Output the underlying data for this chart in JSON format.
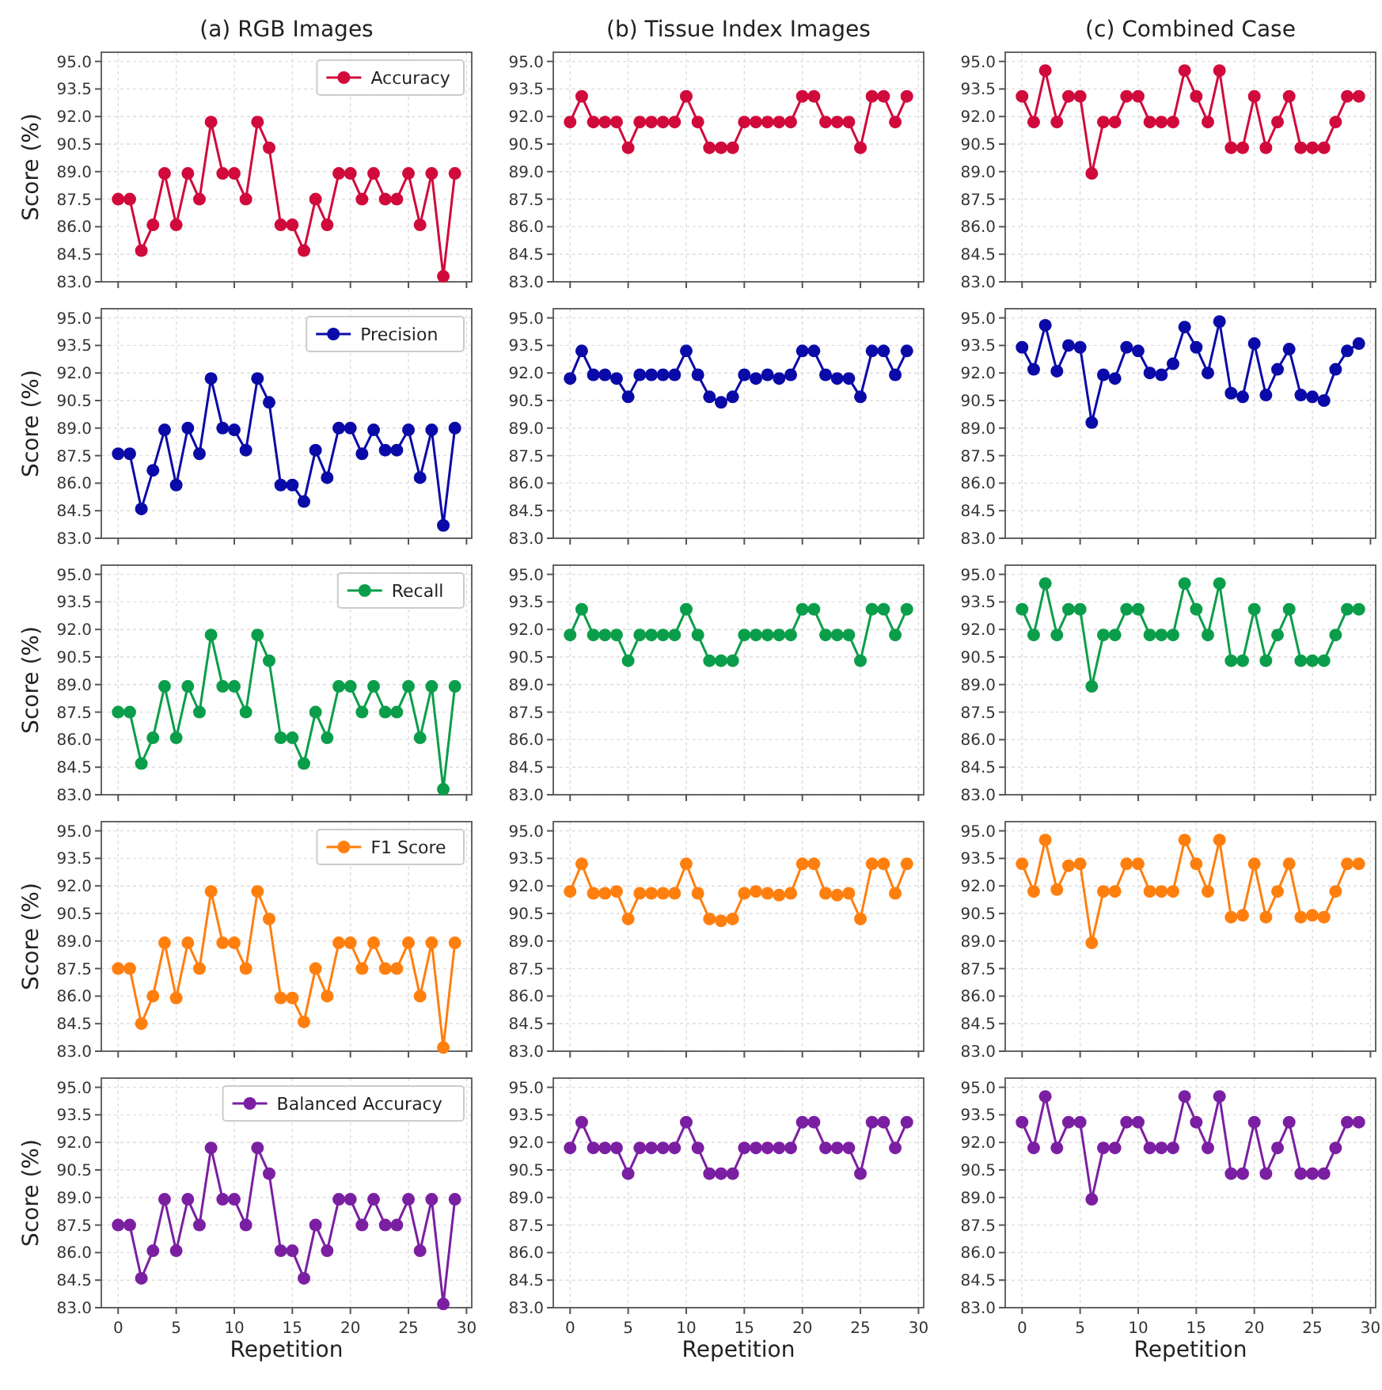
{
  "chart_data": [
    {
      "type": "line",
      "title": "(a) RGB Images",
      "ylabel": "Score (%)",
      "x": [
        0,
        1,
        2,
        3,
        4,
        5,
        6,
        7,
        8,
        9,
        10,
        11,
        12,
        13,
        14,
        15,
        16,
        17,
        18,
        19,
        20,
        21,
        22,
        23,
        24,
        25,
        26,
        27,
        28,
        29
      ],
      "xlim": [
        -1.45,
        30.45
      ],
      "xticks": [
        0,
        5,
        10,
        15,
        20,
        25,
        30
      ],
      "ylim": [
        83,
        95.5
      ],
      "yticks": [
        {
          "value": 83,
          "label": "83.0"
        },
        {
          "value": 84.5,
          "label": "84.5"
        },
        {
          "value": 86,
          "label": "86.0"
        },
        {
          "value": 87.5,
          "label": "87.5"
        },
        {
          "value": 89,
          "label": "89.0"
        },
        {
          "value": 90.5,
          "label": "90.5"
        },
        {
          "value": 92,
          "label": "92.0"
        },
        {
          "value": 93.5,
          "label": "93.5"
        },
        {
          "value": 95,
          "label": "95.0"
        }
      ],
      "grid": true,
      "legend": "top right",
      "marker": "circle",
      "tick_labels": "y",
      "series": [
        {
          "name": "Accuracy",
          "color": "#d10a3c",
          "values": [
            87.5,
            87.5,
            84.7,
            86.1,
            88.9,
            86.1,
            88.9,
            87.5,
            91.7,
            88.9,
            88.9,
            87.5,
            91.7,
            90.3,
            86.1,
            86.1,
            84.7,
            87.5,
            86.1,
            88.9,
            88.9,
            87.5,
            88.9,
            87.5,
            87.5,
            88.9,
            86.1,
            88.9,
            83.3,
            88.9
          ]
        }
      ]
    },
    {
      "type": "line",
      "title": "(b) Tissue Index Images",
      "x": [
        0,
        1,
        2,
        3,
        4,
        5,
        6,
        7,
        8,
        9,
        10,
        11,
        12,
        13,
        14,
        15,
        16,
        17,
        18,
        19,
        20,
        21,
        22,
        23,
        24,
        25,
        26,
        27,
        28,
        29
      ],
      "xlim": [
        -1.45,
        30.45
      ],
      "xticks": [
        0,
        5,
        10,
        15,
        20,
        25,
        30
      ],
      "ylim": [
        83,
        95.5
      ],
      "yticks": [
        {
          "value": 83,
          "label": "83.0"
        },
        {
          "value": 84.5,
          "label": "84.5"
        },
        {
          "value": 86,
          "label": "86.0"
        },
        {
          "value": 87.5,
          "label": "87.5"
        },
        {
          "value": 89,
          "label": "89.0"
        },
        {
          "value": 90.5,
          "label": "90.5"
        },
        {
          "value": 92,
          "label": "92.0"
        },
        {
          "value": 93.5,
          "label": "93.5"
        },
        {
          "value": 95,
          "label": "95.0"
        }
      ],
      "grid": true,
      "marker": "circle",
      "tick_labels": "y",
      "series": [
        {
          "color": "#d10a3c",
          "values": [
            91.7,
            93.1,
            91.7,
            91.7,
            91.7,
            90.3,
            91.7,
            91.7,
            91.7,
            91.7,
            93.1,
            91.7,
            90.3,
            90.3,
            90.3,
            91.7,
            91.7,
            91.7,
            91.7,
            91.7,
            93.1,
            93.1,
            91.7,
            91.7,
            91.7,
            90.3,
            93.1,
            93.1,
            91.7,
            93.1
          ]
        }
      ]
    },
    {
      "type": "line",
      "title": "(c) Combined Case",
      "x": [
        0,
        1,
        2,
        3,
        4,
        5,
        6,
        7,
        8,
        9,
        10,
        11,
        12,
        13,
        14,
        15,
        16,
        17,
        18,
        19,
        20,
        21,
        22,
        23,
        24,
        25,
        26,
        27,
        28,
        29
      ],
      "xlim": [
        -1.45,
        30.45
      ],
      "xticks": [
        0,
        5,
        10,
        15,
        20,
        25,
        30
      ],
      "ylim": [
        83,
        95.5
      ],
      "yticks": [
        {
          "value": 83,
          "label": "83.0"
        },
        {
          "value": 84.5,
          "label": "84.5"
        },
        {
          "value": 86,
          "label": "86.0"
        },
        {
          "value": 87.5,
          "label": "87.5"
        },
        {
          "value": 89,
          "label": "89.0"
        },
        {
          "value": 90.5,
          "label": "90.5"
        },
        {
          "value": 92,
          "label": "92.0"
        },
        {
          "value": 93.5,
          "label": "93.5"
        },
        {
          "value": 95,
          "label": "95.0"
        }
      ],
      "grid": true,
      "marker": "circle",
      "tick_labels": "y",
      "series": [
        {
          "color": "#d10a3c",
          "values": [
            93.1,
            91.7,
            94.5,
            91.7,
            93.1,
            93.1,
            88.9,
            91.7,
            91.7,
            93.1,
            93.1,
            91.7,
            91.7,
            91.7,
            94.5,
            93.1,
            91.7,
            94.5,
            90.3,
            90.3,
            93.1,
            90.3,
            91.7,
            93.1,
            90.3,
            90.3,
            90.3,
            91.7,
            93.1,
            93.1
          ]
        }
      ]
    },
    {
      "type": "line",
      "ylabel": "Score (%)",
      "x": [
        0,
        1,
        2,
        3,
        4,
        5,
        6,
        7,
        8,
        9,
        10,
        11,
        12,
        13,
        14,
        15,
        16,
        17,
        18,
        19,
        20,
        21,
        22,
        23,
        24,
        25,
        26,
        27,
        28,
        29
      ],
      "xlim": [
        -1.45,
        30.45
      ],
      "xticks": [
        0,
        5,
        10,
        15,
        20,
        25,
        30
      ],
      "ylim": [
        83,
        95.5
      ],
      "yticks": [
        {
          "value": 83,
          "label": "83.0"
        },
        {
          "value": 84.5,
          "label": "84.5"
        },
        {
          "value": 86,
          "label": "86.0"
        },
        {
          "value": 87.5,
          "label": "87.5"
        },
        {
          "value": 89,
          "label": "89.0"
        },
        {
          "value": 90.5,
          "label": "90.5"
        },
        {
          "value": 92,
          "label": "92.0"
        },
        {
          "value": 93.5,
          "label": "93.5"
        },
        {
          "value": 95,
          "label": "95.0"
        }
      ],
      "grid": true,
      "legend": "top right",
      "marker": "circle",
      "tick_labels": "y",
      "series": [
        {
          "name": "Precision",
          "color": "#0a0aa8",
          "values": [
            87.6,
            87.6,
            84.6,
            86.7,
            88.9,
            85.9,
            89.0,
            87.6,
            91.7,
            89.0,
            88.9,
            87.8,
            91.7,
            90.4,
            85.9,
            85.9,
            85.0,
            87.8,
            86.3,
            89.0,
            89.0,
            87.6,
            88.9,
            87.8,
            87.8,
            88.9,
            86.3,
            88.9,
            83.7,
            89.0
          ]
        }
      ]
    },
    {
      "type": "line",
      "x": [
        0,
        1,
        2,
        3,
        4,
        5,
        6,
        7,
        8,
        9,
        10,
        11,
        12,
        13,
        14,
        15,
        16,
        17,
        18,
        19,
        20,
        21,
        22,
        23,
        24,
        25,
        26,
        27,
        28,
        29
      ],
      "xlim": [
        -1.45,
        30.45
      ],
      "xticks": [
        0,
        5,
        10,
        15,
        20,
        25,
        30
      ],
      "ylim": [
        83,
        95.5
      ],
      "yticks": [
        {
          "value": 83,
          "label": "83.0"
        },
        {
          "value": 84.5,
          "label": "84.5"
        },
        {
          "value": 86,
          "label": "86.0"
        },
        {
          "value": 87.5,
          "label": "87.5"
        },
        {
          "value": 89,
          "label": "89.0"
        },
        {
          "value": 90.5,
          "label": "90.5"
        },
        {
          "value": 92,
          "label": "92.0"
        },
        {
          "value": 93.5,
          "label": "93.5"
        },
        {
          "value": 95,
          "label": "95.0"
        }
      ],
      "grid": true,
      "marker": "circle",
      "tick_labels": "y",
      "series": [
        {
          "color": "#0a0aa8",
          "values": [
            91.7,
            93.2,
            91.9,
            91.9,
            91.7,
            90.7,
            91.9,
            91.9,
            91.9,
            91.9,
            93.2,
            91.9,
            90.7,
            90.4,
            90.7,
            91.9,
            91.7,
            91.9,
            91.7,
            91.9,
            93.2,
            93.2,
            91.9,
            91.7,
            91.7,
            90.7,
            93.2,
            93.2,
            91.9,
            93.2
          ]
        }
      ]
    },
    {
      "type": "line",
      "x": [
        0,
        1,
        2,
        3,
        4,
        5,
        6,
        7,
        8,
        9,
        10,
        11,
        12,
        13,
        14,
        15,
        16,
        17,
        18,
        19,
        20,
        21,
        22,
        23,
        24,
        25,
        26,
        27,
        28,
        29
      ],
      "xlim": [
        -1.45,
        30.45
      ],
      "xticks": [
        0,
        5,
        10,
        15,
        20,
        25,
        30
      ],
      "ylim": [
        83,
        95.5
      ],
      "yticks": [
        {
          "value": 83,
          "label": "83.0"
        },
        {
          "value": 84.5,
          "label": "84.5"
        },
        {
          "value": 86,
          "label": "86.0"
        },
        {
          "value": 87.5,
          "label": "87.5"
        },
        {
          "value": 89,
          "label": "89.0"
        },
        {
          "value": 90.5,
          "label": "90.5"
        },
        {
          "value": 92,
          "label": "92.0"
        },
        {
          "value": 93.5,
          "label": "93.5"
        },
        {
          "value": 95,
          "label": "95.0"
        }
      ],
      "grid": true,
      "marker": "circle",
      "tick_labels": "y",
      "series": [
        {
          "color": "#0a0aa8",
          "values": [
            93.4,
            92.2,
            94.6,
            92.1,
            93.5,
            93.4,
            89.3,
            91.9,
            91.7,
            93.4,
            93.2,
            92.0,
            91.9,
            92.5,
            94.5,
            93.4,
            92.0,
            94.8,
            90.9,
            90.7,
            93.6,
            90.8,
            92.2,
            93.3,
            90.8,
            90.7,
            90.5,
            92.2,
            93.2,
            93.6
          ]
        }
      ]
    },
    {
      "type": "line",
      "ylabel": "Score (%)",
      "x": [
        0,
        1,
        2,
        3,
        4,
        5,
        6,
        7,
        8,
        9,
        10,
        11,
        12,
        13,
        14,
        15,
        16,
        17,
        18,
        19,
        20,
        21,
        22,
        23,
        24,
        25,
        26,
        27,
        28,
        29
      ],
      "xlim": [
        -1.45,
        30.45
      ],
      "xticks": [
        0,
        5,
        10,
        15,
        20,
        25,
        30
      ],
      "ylim": [
        83,
        95.5
      ],
      "yticks": [
        {
          "value": 83,
          "label": "83.0"
        },
        {
          "value": 84.5,
          "label": "84.5"
        },
        {
          "value": 86,
          "label": "86.0"
        },
        {
          "value": 87.5,
          "label": "87.5"
        },
        {
          "value": 89,
          "label": "89.0"
        },
        {
          "value": 90.5,
          "label": "90.5"
        },
        {
          "value": 92,
          "label": "92.0"
        },
        {
          "value": 93.5,
          "label": "93.5"
        },
        {
          "value": 95,
          "label": "95.0"
        }
      ],
      "grid": true,
      "legend": "top right",
      "marker": "circle",
      "tick_labels": "y",
      "series": [
        {
          "name": "Recall",
          "color": "#0b9e4a",
          "values": [
            87.5,
            87.5,
            84.7,
            86.1,
            88.9,
            86.1,
            88.9,
            87.5,
            91.7,
            88.9,
            88.9,
            87.5,
            91.7,
            90.3,
            86.1,
            86.1,
            84.7,
            87.5,
            86.1,
            88.9,
            88.9,
            87.5,
            88.9,
            87.5,
            87.5,
            88.9,
            86.1,
            88.9,
            83.3,
            88.9
          ]
        }
      ]
    },
    {
      "type": "line",
      "x": [
        0,
        1,
        2,
        3,
        4,
        5,
        6,
        7,
        8,
        9,
        10,
        11,
        12,
        13,
        14,
        15,
        16,
        17,
        18,
        19,
        20,
        21,
        22,
        23,
        24,
        25,
        26,
        27,
        28,
        29
      ],
      "xlim": [
        -1.45,
        30.45
      ],
      "xticks": [
        0,
        5,
        10,
        15,
        20,
        25,
        30
      ],
      "ylim": [
        83,
        95.5
      ],
      "yticks": [
        {
          "value": 83,
          "label": "83.0"
        },
        {
          "value": 84.5,
          "label": "84.5"
        },
        {
          "value": 86,
          "label": "86.0"
        },
        {
          "value": 87.5,
          "label": "87.5"
        },
        {
          "value": 89,
          "label": "89.0"
        },
        {
          "value": 90.5,
          "label": "90.5"
        },
        {
          "value": 92,
          "label": "92.0"
        },
        {
          "value": 93.5,
          "label": "93.5"
        },
        {
          "value": 95,
          "label": "95.0"
        }
      ],
      "grid": true,
      "marker": "circle",
      "tick_labels": "y",
      "series": [
        {
          "color": "#0b9e4a",
          "values": [
            91.7,
            93.1,
            91.7,
            91.7,
            91.7,
            90.3,
            91.7,
            91.7,
            91.7,
            91.7,
            93.1,
            91.7,
            90.3,
            90.3,
            90.3,
            91.7,
            91.7,
            91.7,
            91.7,
            91.7,
            93.1,
            93.1,
            91.7,
            91.7,
            91.7,
            90.3,
            93.1,
            93.1,
            91.7,
            93.1
          ]
        }
      ]
    },
    {
      "type": "line",
      "x": [
        0,
        1,
        2,
        3,
        4,
        5,
        6,
        7,
        8,
        9,
        10,
        11,
        12,
        13,
        14,
        15,
        16,
        17,
        18,
        19,
        20,
        21,
        22,
        23,
        24,
        25,
        26,
        27,
        28,
        29
      ],
      "xlim": [
        -1.45,
        30.45
      ],
      "xticks": [
        0,
        5,
        10,
        15,
        20,
        25,
        30
      ],
      "ylim": [
        83,
        95.5
      ],
      "yticks": [
        {
          "value": 83,
          "label": "83.0"
        },
        {
          "value": 84.5,
          "label": "84.5"
        },
        {
          "value": 86,
          "label": "86.0"
        },
        {
          "value": 87.5,
          "label": "87.5"
        },
        {
          "value": 89,
          "label": "89.0"
        },
        {
          "value": 90.5,
          "label": "90.5"
        },
        {
          "value": 92,
          "label": "92.0"
        },
        {
          "value": 93.5,
          "label": "93.5"
        },
        {
          "value": 95,
          "label": "95.0"
        }
      ],
      "grid": true,
      "marker": "circle",
      "tick_labels": "y",
      "series": [
        {
          "color": "#0b9e4a",
          "values": [
            93.1,
            91.7,
            94.5,
            91.7,
            93.1,
            93.1,
            88.9,
            91.7,
            91.7,
            93.1,
            93.1,
            91.7,
            91.7,
            91.7,
            94.5,
            93.1,
            91.7,
            94.5,
            90.3,
            90.3,
            93.1,
            90.3,
            91.7,
            93.1,
            90.3,
            90.3,
            90.3,
            91.7,
            93.1,
            93.1
          ]
        }
      ]
    },
    {
      "type": "line",
      "ylabel": "Score (%)",
      "x": [
        0,
        1,
        2,
        3,
        4,
        5,
        6,
        7,
        8,
        9,
        10,
        11,
        12,
        13,
        14,
        15,
        16,
        17,
        18,
        19,
        20,
        21,
        22,
        23,
        24,
        25,
        26,
        27,
        28,
        29
      ],
      "xlim": [
        -1.45,
        30.45
      ],
      "xticks": [
        0,
        5,
        10,
        15,
        20,
        25,
        30
      ],
      "ylim": [
        83,
        95.5
      ],
      "yticks": [
        {
          "value": 83,
          "label": "83.0"
        },
        {
          "value": 84.5,
          "label": "84.5"
        },
        {
          "value": 86,
          "label": "86.0"
        },
        {
          "value": 87.5,
          "label": "87.5"
        },
        {
          "value": 89,
          "label": "89.0"
        },
        {
          "value": 90.5,
          "label": "90.5"
        },
        {
          "value": 92,
          "label": "92.0"
        },
        {
          "value": 93.5,
          "label": "93.5"
        },
        {
          "value": 95,
          "label": "95.0"
        }
      ],
      "grid": true,
      "legend": "top right",
      "marker": "circle",
      "tick_labels": "y",
      "series": [
        {
          "name": "F1 Score",
          "color": "#ff7f0e",
          "values": [
            87.5,
            87.5,
            84.5,
            86.0,
            88.9,
            85.9,
            88.9,
            87.5,
            91.7,
            88.9,
            88.9,
            87.5,
            91.7,
            90.2,
            85.9,
            85.9,
            84.6,
            87.5,
            86.0,
            88.9,
            88.9,
            87.5,
            88.9,
            87.5,
            87.5,
            88.9,
            86.0,
            88.9,
            83.2,
            88.9
          ]
        }
      ]
    },
    {
      "type": "line",
      "x": [
        0,
        1,
        2,
        3,
        4,
        5,
        6,
        7,
        8,
        9,
        10,
        11,
        12,
        13,
        14,
        15,
        16,
        17,
        18,
        19,
        20,
        21,
        22,
        23,
        24,
        25,
        26,
        27,
        28,
        29
      ],
      "xlim": [
        -1.45,
        30.45
      ],
      "xticks": [
        0,
        5,
        10,
        15,
        20,
        25,
        30
      ],
      "ylim": [
        83,
        95.5
      ],
      "yticks": [
        {
          "value": 83,
          "label": "83.0"
        },
        {
          "value": 84.5,
          "label": "84.5"
        },
        {
          "value": 86,
          "label": "86.0"
        },
        {
          "value": 87.5,
          "label": "87.5"
        },
        {
          "value": 89,
          "label": "89.0"
        },
        {
          "value": 90.5,
          "label": "90.5"
        },
        {
          "value": 92,
          "label": "92.0"
        },
        {
          "value": 93.5,
          "label": "93.5"
        },
        {
          "value": 95,
          "label": "95.0"
        }
      ],
      "grid": true,
      "marker": "circle",
      "tick_labels": "y",
      "series": [
        {
          "color": "#ff7f0e",
          "values": [
            91.7,
            93.2,
            91.6,
            91.6,
            91.7,
            90.2,
            91.6,
            91.6,
            91.6,
            91.6,
            93.2,
            91.6,
            90.2,
            90.1,
            90.2,
            91.6,
            91.7,
            91.6,
            91.5,
            91.6,
            93.2,
            93.2,
            91.6,
            91.5,
            91.6,
            90.2,
            93.2,
            93.2,
            91.6,
            93.2
          ]
        }
      ]
    },
    {
      "type": "line",
      "x": [
        0,
        1,
        2,
        3,
        4,
        5,
        6,
        7,
        8,
        9,
        10,
        11,
        12,
        13,
        14,
        15,
        16,
        17,
        18,
        19,
        20,
        21,
        22,
        23,
        24,
        25,
        26,
        27,
        28,
        29
      ],
      "xlim": [
        -1.45,
        30.45
      ],
      "xticks": [
        0,
        5,
        10,
        15,
        20,
        25,
        30
      ],
      "ylim": [
        83,
        95.5
      ],
      "yticks": [
        {
          "value": 83,
          "label": "83.0"
        },
        {
          "value": 84.5,
          "label": "84.5"
        },
        {
          "value": 86,
          "label": "86.0"
        },
        {
          "value": 87.5,
          "label": "87.5"
        },
        {
          "value": 89,
          "label": "89.0"
        },
        {
          "value": 90.5,
          "label": "90.5"
        },
        {
          "value": 92,
          "label": "92.0"
        },
        {
          "value": 93.5,
          "label": "93.5"
        },
        {
          "value": 95,
          "label": "95.0"
        }
      ],
      "grid": true,
      "marker": "circle",
      "tick_labels": "y",
      "series": [
        {
          "color": "#ff7f0e",
          "values": [
            93.2,
            91.7,
            94.5,
            91.8,
            93.1,
            93.2,
            88.9,
            91.7,
            91.7,
            93.2,
            93.2,
            91.7,
            91.7,
            91.7,
            94.5,
            93.2,
            91.7,
            94.5,
            90.3,
            90.4,
            93.2,
            90.3,
            91.7,
            93.2,
            90.3,
            90.4,
            90.3,
            91.7,
            93.2,
            93.2
          ]
        }
      ]
    },
    {
      "type": "line",
      "ylabel": "Score (%)",
      "xlabel": "Repetition",
      "x": [
        0,
        1,
        2,
        3,
        4,
        5,
        6,
        7,
        8,
        9,
        10,
        11,
        12,
        13,
        14,
        15,
        16,
        17,
        18,
        19,
        20,
        21,
        22,
        23,
        24,
        25,
        26,
        27,
        28,
        29
      ],
      "xlim": [
        -1.45,
        30.45
      ],
      "xticks": [
        0,
        5,
        10,
        15,
        20,
        25,
        30
      ],
      "ylim": [
        83,
        95.5
      ],
      "yticks": [
        {
          "value": 83,
          "label": "83.0"
        },
        {
          "value": 84.5,
          "label": "84.5"
        },
        {
          "value": 86,
          "label": "86.0"
        },
        {
          "value": 87.5,
          "label": "87.5"
        },
        {
          "value": 89,
          "label": "89.0"
        },
        {
          "value": 90.5,
          "label": "90.5"
        },
        {
          "value": 92,
          "label": "92.0"
        },
        {
          "value": 93.5,
          "label": "93.5"
        },
        {
          "value": 95,
          "label": "95.0"
        }
      ],
      "grid": true,
      "legend": "top right",
      "marker": "circle",
      "series": [
        {
          "name": "Balanced Accuracy",
          "color": "#7b1fa2",
          "values": [
            87.5,
            87.5,
            84.6,
            86.1,
            88.9,
            86.1,
            88.9,
            87.5,
            91.7,
            88.9,
            88.9,
            87.5,
            91.7,
            90.3,
            86.1,
            86.1,
            84.6,
            87.5,
            86.1,
            88.9,
            88.9,
            87.5,
            88.9,
            87.5,
            87.5,
            88.9,
            86.1,
            88.9,
            83.2,
            88.9
          ]
        }
      ]
    },
    {
      "type": "line",
      "xlabel": "Repetition",
      "x": [
        0,
        1,
        2,
        3,
        4,
        5,
        6,
        7,
        8,
        9,
        10,
        11,
        12,
        13,
        14,
        15,
        16,
        17,
        18,
        19,
        20,
        21,
        22,
        23,
        24,
        25,
        26,
        27,
        28,
        29
      ],
      "xlim": [
        -1.45,
        30.45
      ],
      "xticks": [
        0,
        5,
        10,
        15,
        20,
        25,
        30
      ],
      "ylim": [
        83,
        95.5
      ],
      "yticks": [
        {
          "value": 83,
          "label": "83.0"
        },
        {
          "value": 84.5,
          "label": "84.5"
        },
        {
          "value": 86,
          "label": "86.0"
        },
        {
          "value": 87.5,
          "label": "87.5"
        },
        {
          "value": 89,
          "label": "89.0"
        },
        {
          "value": 90.5,
          "label": "90.5"
        },
        {
          "value": 92,
          "label": "92.0"
        },
        {
          "value": 93.5,
          "label": "93.5"
        },
        {
          "value": 95,
          "label": "95.0"
        }
      ],
      "grid": true,
      "marker": "circle",
      "series": [
        {
          "color": "#7b1fa2",
          "values": [
            91.7,
            93.1,
            91.7,
            91.7,
            91.7,
            90.3,
            91.7,
            91.7,
            91.7,
            91.7,
            93.1,
            91.7,
            90.3,
            90.3,
            90.3,
            91.7,
            91.7,
            91.7,
            91.7,
            91.7,
            93.1,
            93.1,
            91.7,
            91.7,
            91.7,
            90.3,
            93.1,
            93.1,
            91.7,
            93.1
          ]
        }
      ]
    },
    {
      "type": "line",
      "xlabel": "Repetition",
      "x": [
        0,
        1,
        2,
        3,
        4,
        5,
        6,
        7,
        8,
        9,
        10,
        11,
        12,
        13,
        14,
        15,
        16,
        17,
        18,
        19,
        20,
        21,
        22,
        23,
        24,
        25,
        26,
        27,
        28,
        29
      ],
      "xlim": [
        -1.45,
        30.45
      ],
      "xticks": [
        0,
        5,
        10,
        15,
        20,
        25,
        30
      ],
      "ylim": [
        83,
        95.5
      ],
      "yticks": [
        {
          "value": 83,
          "label": "83.0"
        },
        {
          "value": 84.5,
          "label": "84.5"
        },
        {
          "value": 86,
          "label": "86.0"
        },
        {
          "value": 87.5,
          "label": "87.5"
        },
        {
          "value": 89,
          "label": "89.0"
        },
        {
          "value": 90.5,
          "label": "90.5"
        },
        {
          "value": 92,
          "label": "92.0"
        },
        {
          "value": 93.5,
          "label": "93.5"
        },
        {
          "value": 95,
          "label": "95.0"
        }
      ],
      "grid": true,
      "marker": "circle",
      "series": [
        {
          "color": "#7b1fa2",
          "values": [
            93.1,
            91.7,
            94.5,
            91.7,
            93.1,
            93.1,
            88.9,
            91.7,
            91.7,
            93.1,
            93.1,
            91.7,
            91.7,
            91.7,
            94.5,
            93.1,
            91.7,
            94.5,
            90.3,
            90.3,
            93.1,
            90.3,
            91.7,
            93.1,
            90.3,
            90.3,
            90.3,
            91.7,
            93.1,
            93.1
          ]
        }
      ]
    }
  ]
}
